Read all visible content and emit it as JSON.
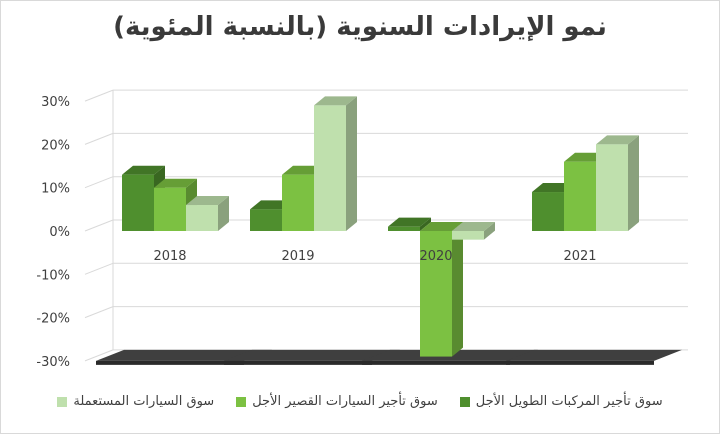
{
  "chart_data": {
    "type": "bar",
    "title": "نمو الإيرادات السنوية (بالنسبة المئوية)",
    "categories": [
      "2018",
      "2019",
      "2020",
      "2021"
    ],
    "series": [
      {
        "name": "سوق تأجير المركبات الطويل الأجل",
        "values": [
          13,
          5,
          1,
          9
        ],
        "color": "#4f8f2e"
      },
      {
        "name": "سوق تأجير السيارات القصير الأجل",
        "values": [
          10,
          13,
          -29,
          16
        ],
        "color": "#7cc142"
      },
      {
        "name": "سوق السيارات المستعملة",
        "values": [
          6,
          29,
          -2,
          20
        ],
        "color": "#bfe0ad"
      }
    ],
    "ylim": [
      -30,
      30
    ],
    "yticks": [
      -30,
      -20,
      -10,
      0,
      10,
      20,
      30
    ],
    "ytick_labels": [
      "-30%",
      "-20%",
      "-10%",
      "0%",
      "10%",
      "20%",
      "30%"
    ],
    "grid": true,
    "legend_position": "bottom"
  }
}
